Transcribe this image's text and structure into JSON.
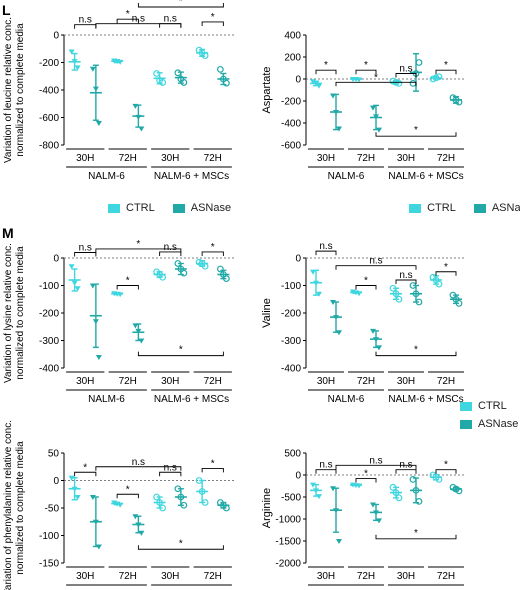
{
  "panel_labels": [
    "L",
    "M"
  ],
  "colors": {
    "ctrl": "#3fd6df",
    "asnase": "#20a9a7"
  },
  "legends": [
    {
      "items": [
        {
          "label": "CTRL",
          "color": "#3fd6df"
        },
        {
          "label": "ASNase",
          "color": "#20a9a7"
        }
      ]
    },
    {
      "items": [
        {
          "label": "CTRL",
          "color": "#3fd6df"
        },
        {
          "label": "ASNase",
          "color": "#20a9a7"
        }
      ]
    }
  ],
  "chart_data": [
    {
      "type": "scatter",
      "ylabel": "Variation of leucine relative conc.\nnormalized to complete media",
      "ylim": [
        -800,
        0
      ],
      "yticks": [
        0,
        -200,
        -400,
        -600,
        -800
      ],
      "groups": [
        {
          "tick": "30H",
          "ctrl": {
            "mean": -195,
            "sd": 60,
            "points": [
              -120,
              -190,
              -235
            ]
          },
          "asnase": {
            "mean": -420,
            "sd": 200,
            "points": [
              -245,
              -390,
              -640
            ]
          }
        },
        {
          "tick": "72H",
          "ctrl": {
            "mean": -190,
            "sd": 10,
            "points": [
              -185,
              -190,
              -195
            ]
          },
          "asnase": {
            "mean": -590,
            "sd": 80,
            "points": [
              -515,
              -595,
              -680
            ]
          }
        },
        {
          "tick": "30H",
          "ctrl": {
            "mean": -315,
            "sd": 40,
            "points": [
              -280,
              -330,
              -345
            ]
          },
          "asnase": {
            "mean": -310,
            "sd": 40,
            "points": [
              -275,
              -320,
              -345
            ]
          }
        },
        {
          "tick": "72H",
          "ctrl": {
            "mean": -130,
            "sd": 25,
            "points": [
              -110,
              -130,
              -150
            ]
          },
          "asnase": {
            "mean": -320,
            "sd": 40,
            "points": [
              -250,
              -320,
              -350
            ]
          }
        }
      ],
      "cell_labels": [
        "NALM-6",
        "NALM-6 + MSCs"
      ],
      "brackets": [
        {
          "a": 0,
          "b": 1,
          "y": 75,
          "label": "n.s"
        },
        {
          "a": 2,
          "b": 3,
          "y": 115,
          "label": "*"
        },
        {
          "a": 1,
          "b": 5,
          "y": 82,
          "label": "n.s"
        },
        {
          "a": 4,
          "b": 5,
          "y": 82,
          "label": "n.s"
        },
        {
          "a": 6,
          "b": 7,
          "y": 95,
          "label": "*"
        },
        {
          "a": 3,
          "b": 7,
          "y": 765,
          "label": "*",
          "below": true
        }
      ]
    },
    {
      "type": "scatter",
      "ylabel": "Aspartate",
      "ylim": [
        -600,
        400
      ],
      "yticks": [
        400,
        200,
        0,
        -200,
        -400,
        -600
      ],
      "groups": [
        {
          "tick": "30H",
          "ctrl": {
            "mean": -40,
            "sd": 20,
            "points": [
              -20,
              -40,
              -60
            ]
          },
          "asnase": {
            "mean": -300,
            "sd": 160,
            "points": [
              -150,
              -300,
              -450
            ]
          }
        },
        {
          "tick": "72H",
          "ctrl": {
            "mean": 0,
            "sd": 5,
            "points": [
              0,
              0,
              -5
            ]
          },
          "asnase": {
            "mean": -350,
            "sd": 110,
            "points": [
              -260,
              -340,
              -460
            ]
          }
        },
        {
          "tick": "30H",
          "ctrl": {
            "mean": -30,
            "sd": 15,
            "points": [
              -20,
              -30,
              -40
            ]
          },
          "asnase": {
            "mean": 60,
            "sd": 170,
            "points": [
              -40,
              50,
              150
            ]
          }
        },
        {
          "tick": "72H",
          "ctrl": {
            "mean": 10,
            "sd": 10,
            "points": [
              0,
              10,
              20
            ]
          },
          "asnase": {
            "mean": -190,
            "sd": 30,
            "points": [
              -170,
              -190,
              -210
            ]
          }
        }
      ],
      "cell_labels": [
        "NALM-6",
        "NALM-6 + MSCs"
      ],
      "brackets": [
        {
          "a": 0,
          "b": 1,
          "y": 80,
          "label": "*"
        },
        {
          "a": 2,
          "b": 3,
          "y": 80,
          "label": "*"
        },
        {
          "a": 1,
          "b": 5,
          "y": -30,
          "label": "*"
        },
        {
          "a": 4,
          "b": 5,
          "y": 50,
          "label": "n.s"
        },
        {
          "a": 6,
          "b": 7,
          "y": 80,
          "label": "*"
        },
        {
          "a": 3,
          "b": 7,
          "y": -520,
          "label": "*",
          "below": true
        }
      ]
    },
    {
      "type": "scatter",
      "ylabel": "Variation of lysine relative conc.\nnormalized to complete media",
      "ylim": [
        -400,
        0
      ],
      "yticks": [
        0,
        -100,
        -200,
        -300,
        -400
      ],
      "groups": [
        {
          "tick": "30H",
          "ctrl": {
            "mean": -80,
            "sd": 40,
            "points": [
              -30,
              -90,
              -110
            ]
          },
          "asnase": {
            "mean": -210,
            "sd": 115,
            "points": [
              -100,
              -230,
              -360
            ]
          }
        },
        {
          "tick": "72H",
          "ctrl": {
            "mean": -130,
            "sd": 3,
            "points": [
              -128,
              -130,
              -132
            ]
          },
          "asnase": {
            "mean": -270,
            "sd": 30,
            "points": [
              -245,
              -265,
              -300
            ]
          }
        },
        {
          "tick": "30H",
          "ctrl": {
            "mean": -60,
            "sd": 10,
            "points": [
              -50,
              -60,
              -70
            ]
          },
          "asnase": {
            "mean": -40,
            "sd": 20,
            "points": [
              -20,
              -40,
              -55
            ]
          }
        },
        {
          "tick": "72H",
          "ctrl": {
            "mean": -20,
            "sd": 10,
            "points": [
              -15,
              -20,
              -30
            ]
          },
          "asnase": {
            "mean": -60,
            "sd": 15,
            "points": [
              -40,
              -60,
              -75
            ]
          }
        }
      ],
      "cell_labels": [
        "NALM-6",
        "NALM-6 + MSCs"
      ],
      "brackets": [
        {
          "a": 0,
          "b": 1,
          "y": 20,
          "label": "n.s"
        },
        {
          "a": 2,
          "b": 3,
          "y": -100,
          "label": "*"
        },
        {
          "a": 1,
          "b": 5,
          "y": 33,
          "label": "*"
        },
        {
          "a": 4,
          "b": 5,
          "y": 22,
          "label": "n.s"
        },
        {
          "a": 6,
          "b": 7,
          "y": 22,
          "label": "*"
        },
        {
          "a": 3,
          "b": 7,
          "y": -355,
          "label": "*",
          "below": true
        }
      ]
    },
    {
      "type": "scatter",
      "ylabel": "Valine",
      "ylim": [
        -400,
        0
      ],
      "yticks": [
        0,
        -100,
        -200,
        -300,
        -400
      ],
      "groups": [
        {
          "tick": "30H",
          "ctrl": {
            "mean": -90,
            "sd": 45,
            "points": [
              -50,
              -90,
              -130
            ]
          },
          "asnase": {
            "mean": -215,
            "sd": 55,
            "points": [
              -160,
              -215,
              -270
            ]
          }
        },
        {
          "tick": "72H",
          "ctrl": {
            "mean": -125,
            "sd": 3,
            "points": [
              -122,
              -125,
              -128
            ]
          },
          "asnase": {
            "mean": -295,
            "sd": 30,
            "points": [
              -265,
              -295,
              -325
            ]
          }
        },
        {
          "tick": "30H",
          "ctrl": {
            "mean": -130,
            "sd": 20,
            "points": [
              -110,
              -130,
              -150
            ]
          },
          "asnase": {
            "mean": -130,
            "sd": 30,
            "points": [
              -100,
              -130,
              -160
            ]
          }
        },
        {
          "tick": "72H",
          "ctrl": {
            "mean": -80,
            "sd": 15,
            "points": [
              -70,
              -80,
              -95
            ]
          },
          "asnase": {
            "mean": -150,
            "sd": 15,
            "points": [
              -135,
              -150,
              -165
            ]
          }
        }
      ],
      "cell_labels": [
        "NALM-6",
        "NALM-6 + MSCs"
      ],
      "brackets": [
        {
          "a": 0,
          "b": 1,
          "y": 25,
          "label": "n.s"
        },
        {
          "a": 2,
          "b": 3,
          "y": -100,
          "label": "*"
        },
        {
          "a": 1,
          "b": 5,
          "y": -28,
          "label": "n.s"
        },
        {
          "a": 4,
          "b": 5,
          "y": -80,
          "label": "n.s"
        },
        {
          "a": 6,
          "b": 7,
          "y": -50,
          "label": "*"
        },
        {
          "a": 3,
          "b": 7,
          "y": -355,
          "label": "*",
          "below": true
        }
      ]
    },
    {
      "type": "scatter",
      "ylabel": "Variation of phenylalanine relative conc.\nnormalized to complete media",
      "ylim": [
        -150,
        50
      ],
      "yticks": [
        50,
        0,
        -50,
        -100,
        -150
      ],
      "groups": [
        {
          "tick": "30H",
          "ctrl": {
            "mean": -15,
            "sd": 20,
            "points": [
              5,
              -15,
              -30
            ]
          },
          "asnase": {
            "mean": -75,
            "sd": 45,
            "points": [
              -30,
              -75,
              -120
            ]
          }
        },
        {
          "tick": "72H",
          "ctrl": {
            "mean": -42,
            "sd": 2,
            "points": [
              -40,
              -42,
              -44
            ]
          },
          "asnase": {
            "mean": -80,
            "sd": 15,
            "points": [
              -65,
              -80,
              -95
            ]
          }
        },
        {
          "tick": "30H",
          "ctrl": {
            "mean": -40,
            "sd": 10,
            "points": [
              -30,
              -40,
              -50
            ]
          },
          "asnase": {
            "mean": -30,
            "sd": 15,
            "points": [
              -15,
              -30,
              -45
            ]
          }
        },
        {
          "tick": "72H",
          "ctrl": {
            "mean": -20,
            "sd": 20,
            "points": [
              0,
              -20,
              -40
            ]
          },
          "asnase": {
            "mean": -45,
            "sd": 5,
            "points": [
              -40,
              -45,
              -50
            ]
          }
        }
      ],
      "cell_labels": [
        "NALM-6",
        "NALM-6 + MSCs"
      ],
      "brackets": [
        {
          "a": 0,
          "b": 1,
          "y": 15,
          "label": "*"
        },
        {
          "a": 2,
          "b": 3,
          "y": -25,
          "label": "*"
        },
        {
          "a": 1,
          "b": 5,
          "y": 25,
          "label": "n.s"
        },
        {
          "a": 4,
          "b": 5,
          "y": 15,
          "label": "n.s"
        },
        {
          "a": 6,
          "b": 7,
          "y": 22,
          "label": "*"
        },
        {
          "a": 3,
          "b": 7,
          "y": -125,
          "label": "*",
          "below": true
        }
      ]
    },
    {
      "type": "scatter",
      "ylabel": "Arginine",
      "ylim": [
        -2000,
        500
      ],
      "yticks": [
        500,
        0,
        -500,
        -1000,
        -1500,
        -2000
      ],
      "groups": [
        {
          "tick": "30H",
          "ctrl": {
            "mean": -350,
            "sd": 130,
            "points": [
              -220,
              -350,
              -480
            ]
          },
          "asnase": {
            "mean": -800,
            "sd": 500,
            "points": [
              -300,
              -800,
              -1500
            ]
          }
        },
        {
          "tick": "72H",
          "ctrl": {
            "mean": -230,
            "sd": 10,
            "points": [
              -220,
              -230,
              -240
            ]
          },
          "asnase": {
            "mean": -850,
            "sd": 180,
            "points": [
              -670,
              -850,
              -1030
            ]
          }
        },
        {
          "tick": "30H",
          "ctrl": {
            "mean": -400,
            "sd": 120,
            "points": [
              -280,
              -400,
              -520
            ]
          },
          "asnase": {
            "mean": -350,
            "sd": 280,
            "points": [
              -100,
              -350,
              -600
            ]
          }
        },
        {
          "tick": "72H",
          "ctrl": {
            "mean": -50,
            "sd": 60,
            "points": [
              0,
              -50,
              -100
            ]
          },
          "asnase": {
            "mean": -320,
            "sd": 40,
            "points": [
              -280,
              -320,
              -360
            ]
          }
        }
      ],
      "cell_labels": [
        "NALM-6",
        "NALM-6 + MSCs"
      ],
      "brackets": [
        {
          "a": 0,
          "b": 1,
          "y": 120,
          "label": "n.s"
        },
        {
          "a": 2,
          "b": 3,
          "y": -80,
          "label": "*"
        },
        {
          "a": 1,
          "b": 5,
          "y": 220,
          "label": "n.s"
        },
        {
          "a": 4,
          "b": 5,
          "y": 120,
          "label": "n.s"
        },
        {
          "a": 6,
          "b": 7,
          "y": 120,
          "label": "*"
        },
        {
          "a": 3,
          "b": 7,
          "y": -1450,
          "label": "*",
          "below": true
        }
      ]
    }
  ]
}
